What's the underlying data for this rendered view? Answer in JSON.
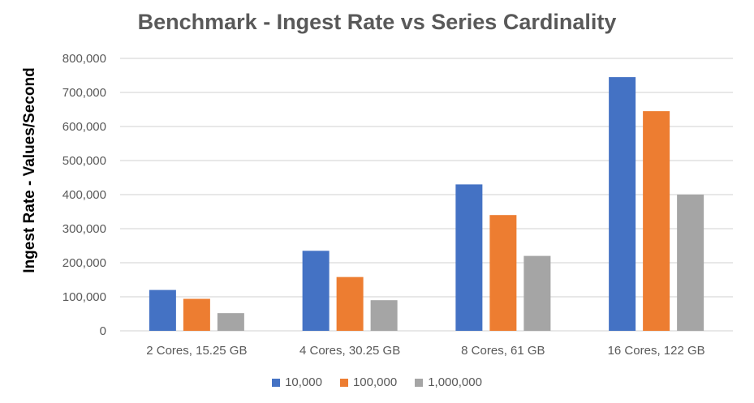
{
  "chart_data": {
    "type": "bar",
    "title": "Benchmark - Ingest Rate vs Series Cardinality",
    "xlabel": "",
    "ylabel": "Ingest Rate - Values/Second",
    "ylim": [
      0,
      800000
    ],
    "yticks": [
      0,
      100000,
      200000,
      300000,
      400000,
      500000,
      600000,
      700000,
      800000
    ],
    "ytick_labels": [
      "0",
      "100,000",
      "200,000",
      "300,000",
      "400,000",
      "500,000",
      "600,000",
      "700,000",
      "800,000"
    ],
    "grid": true,
    "legend_position": "bottom",
    "categories": [
      "2 Cores, 15.25 GB",
      "4 Cores, 30.25 GB",
      "8 Cores, 61 GB",
      "16 Cores, 122 GB"
    ],
    "series": [
      {
        "name": "10,000",
        "color": "#4472C4",
        "values": [
          120000,
          235000,
          430000,
          745000
        ]
      },
      {
        "name": "100,000",
        "color": "#ED7D31",
        "values": [
          94000,
          158000,
          340000,
          645000
        ]
      },
      {
        "name": "1,000,000",
        "color": "#A5A5A5",
        "values": [
          52000,
          90000,
          220000,
          400000
        ]
      }
    ]
  }
}
